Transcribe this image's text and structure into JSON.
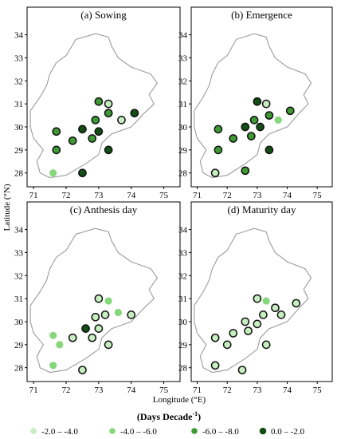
{
  "chart_data": {
    "type": "scatter",
    "x_axis_label": "Longitude (°E)",
    "y_axis_label": "Latitude (°N)",
    "xlim": [
      70.8,
      75.5
    ],
    "ylim": [
      27.4,
      35.2
    ],
    "x_ticks": [
      "71",
      "72",
      "73",
      "74",
      "75"
    ],
    "y_ticks": [
      "28",
      "29",
      "30",
      "31",
      "32",
      "33",
      "34"
    ],
    "legend": {
      "title": "(Days Decade",
      "title_sup": "-1",
      "title_close": ")",
      "classes": [
        {
          "label": "-2.0 – -4.0",
          "color": "#c6eec0"
        },
        {
          "label": "-4.0 – -6.0",
          "color": "#86d77c"
        },
        {
          "label": "-6.0 – -8.0",
          "color": "#3e9a35"
        },
        {
          "label": "0.0 – -2.0",
          "color": "#124f14"
        }
      ]
    },
    "panels": [
      {
        "title": "(a)  Sowing",
        "stations": [
          {
            "lon": 71.7,
            "lat": 29.8,
            "cls": 2
          },
          {
            "lon": 71.7,
            "lat": 29.0,
            "cls": 2
          },
          {
            "lon": 71.6,
            "lat": 28.0,
            "cls": 1
          },
          {
            "lon": 72.2,
            "lat": 29.4,
            "cls": 2
          },
          {
            "lon": 72.5,
            "lat": 28.0,
            "cls": 3
          },
          {
            "lon": 72.5,
            "lat": 29.9,
            "cls": 3
          },
          {
            "lon": 72.8,
            "lat": 29.5,
            "cls": 2
          },
          {
            "lon": 72.9,
            "lat": 30.3,
            "cls": 2
          },
          {
            "lon": 73.0,
            "lat": 29.8,
            "cls": 3
          },
          {
            "lon": 73.0,
            "lat": 31.1,
            "cls": 2
          },
          {
            "lon": 73.3,
            "lat": 31.0,
            "cls": 0
          },
          {
            "lon": 73.3,
            "lat": 30.6,
            "cls": 2
          },
          {
            "lon": 73.3,
            "lat": 29.0,
            "cls": 3
          },
          {
            "lon": 73.7,
            "lat": 30.3,
            "cls": 0
          },
          {
            "lon": 74.1,
            "lat": 30.6,
            "cls": 3
          }
        ]
      },
      {
        "title": "(b) Emergence",
        "stations": [
          {
            "lon": 71.7,
            "lat": 29.9,
            "cls": 2
          },
          {
            "lon": 71.7,
            "lat": 29.0,
            "cls": 2
          },
          {
            "lon": 71.6,
            "lat": 28.0,
            "cls": 0
          },
          {
            "lon": 72.2,
            "lat": 29.5,
            "cls": 2
          },
          {
            "lon": 72.6,
            "lat": 28.1,
            "cls": 2
          },
          {
            "lon": 72.6,
            "lat": 30.0,
            "cls": 3
          },
          {
            "lon": 72.8,
            "lat": 29.6,
            "cls": 2
          },
          {
            "lon": 72.9,
            "lat": 30.3,
            "cls": 2
          },
          {
            "lon": 73.1,
            "lat": 30.0,
            "cls": 3
          },
          {
            "lon": 73.0,
            "lat": 31.1,
            "cls": 3
          },
          {
            "lon": 73.3,
            "lat": 31.0,
            "cls": 0
          },
          {
            "lon": 73.4,
            "lat": 30.5,
            "cls": 2
          },
          {
            "lon": 73.4,
            "lat": 29.0,
            "cls": 3
          },
          {
            "lon": 73.7,
            "lat": 30.3,
            "cls": 1
          },
          {
            "lon": 74.1,
            "lat": 30.7,
            "cls": 2
          }
        ]
      },
      {
        "title": "(c) Anthesis day",
        "stations": [
          {
            "lon": 71.6,
            "lat": 29.4,
            "cls": 1
          },
          {
            "lon": 71.8,
            "lat": 29.0,
            "cls": 1
          },
          {
            "lon": 71.6,
            "lat": 28.1,
            "cls": 1
          },
          {
            "lon": 72.2,
            "lat": 29.3,
            "cls": 0
          },
          {
            "lon": 72.5,
            "lat": 27.9,
            "cls": 0
          },
          {
            "lon": 72.6,
            "lat": 29.7,
            "cls": 3
          },
          {
            "lon": 72.8,
            "lat": 29.3,
            "cls": 0
          },
          {
            "lon": 72.9,
            "lat": 30.2,
            "cls": 0
          },
          {
            "lon": 73.0,
            "lat": 29.7,
            "cls": 0
          },
          {
            "lon": 73.0,
            "lat": 31.0,
            "cls": 0
          },
          {
            "lon": 73.3,
            "lat": 30.9,
            "cls": 1
          },
          {
            "lon": 73.2,
            "lat": 30.3,
            "cls": 0
          },
          {
            "lon": 73.3,
            "lat": 29.0,
            "cls": 0
          },
          {
            "lon": 73.6,
            "lat": 30.4,
            "cls": 1
          },
          {
            "lon": 74.0,
            "lat": 30.3,
            "cls": 0
          }
        ]
      },
      {
        "title": "(d) Maturity day",
        "stations": [
          {
            "lon": 71.6,
            "lat": 29.3,
            "cls": 0
          },
          {
            "lon": 72.0,
            "lat": 29.0,
            "cls": 0
          },
          {
            "lon": 71.6,
            "lat": 28.1,
            "cls": 0
          },
          {
            "lon": 72.2,
            "lat": 29.5,
            "cls": 0
          },
          {
            "lon": 72.5,
            "lat": 27.9,
            "cls": 0
          },
          {
            "lon": 72.6,
            "lat": 30.0,
            "cls": 0
          },
          {
            "lon": 72.7,
            "lat": 29.6,
            "cls": 0
          },
          {
            "lon": 73.0,
            "lat": 29.9,
            "cls": 0
          },
          {
            "lon": 73.0,
            "lat": 31.0,
            "cls": 0
          },
          {
            "lon": 73.3,
            "lat": 30.9,
            "cls": 1
          },
          {
            "lon": 73.2,
            "lat": 30.3,
            "cls": 0
          },
          {
            "lon": 73.3,
            "lat": 29.0,
            "cls": 0
          },
          {
            "lon": 73.6,
            "lat": 30.6,
            "cls": 0
          },
          {
            "lon": 73.8,
            "lat": 30.3,
            "cls": 0
          },
          {
            "lon": 74.3,
            "lat": 30.8,
            "cls": 0
          }
        ]
      }
    ]
  }
}
